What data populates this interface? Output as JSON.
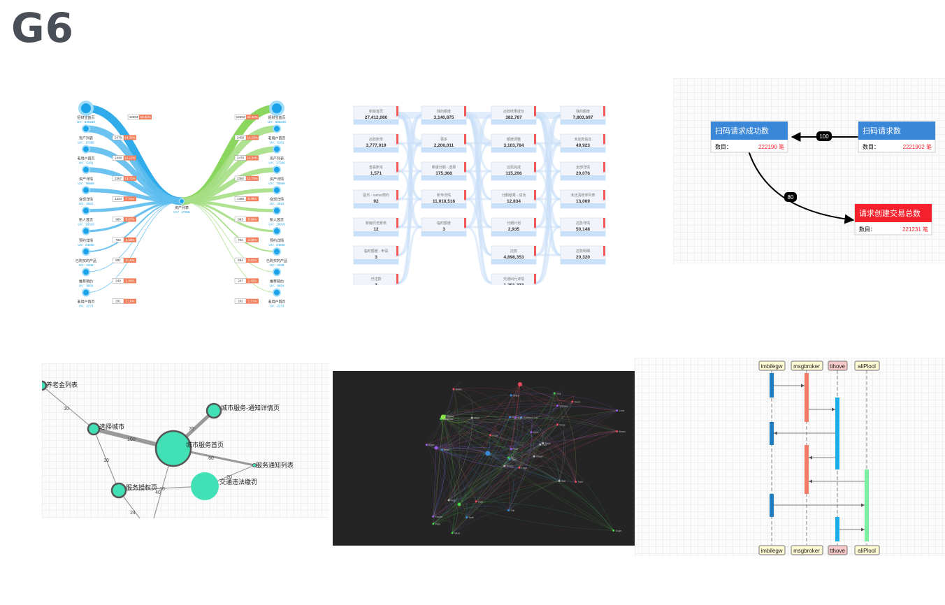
{
  "brand": {
    "logo_text": "G6"
  },
  "sankey_tree": {
    "center": {
      "label": "资产列表",
      "uv": "UV：17266"
    },
    "left_nodes": [
      {
        "label": "招财宝首页",
        "uv": "UV：836348",
        "value": "12693",
        "pct": "33.81%"
      },
      {
        "label": "资产列表",
        "uv": "UV：17266",
        "value": "2478",
        "pct": "14.35%"
      },
      {
        "label": "老用户首页",
        "uv": "UV：5181",
        "value": "2438",
        "pct": "14.12%"
      },
      {
        "label": "资产详情",
        "uv": "UV：76669",
        "value": "2367",
        "pct": "13.71%"
      },
      {
        "label": "变现详情",
        "uv": "UV：2922",
        "value": "1334",
        "pct": "7.72%"
      },
      {
        "label": "新人首页",
        "uv": "UV：16019",
        "value": "980",
        "pct": "5.67%"
      },
      {
        "label": "预约详情",
        "uv": "UV：64600",
        "value": "722",
        "pct": "4.18%"
      },
      {
        "label": "已购买的产品",
        "uv": "UV：4338",
        "value": "551",
        "pct": "3.19%"
      },
      {
        "label": "推荐预约",
        "uv": "UV：9654",
        "value": "249",
        "pct": "1.44%"
      },
      {
        "label": "老用户首页",
        "uv": "UV：2273",
        "value": "201",
        "pct": "1.16%"
      }
    ],
    "right_nodes": [
      {
        "label": "招财宝首页",
        "uv": "UV：836348",
        "value": "12263",
        "pct": "32.91%"
      },
      {
        "label": "老用户首页",
        "uv": "UV：5181",
        "value": "2458",
        "pct": "14.23%"
      },
      {
        "label": "资产列表",
        "uv": "UV：17266",
        "value": "2476",
        "pct": "14.34%"
      },
      {
        "label": "资产详情",
        "uv": "UV：76669",
        "value": "2360",
        "pct": "13.70%"
      },
      {
        "label": "变现详情",
        "uv": "UV：2922",
        "value": "1488",
        "pct": "8.48%"
      },
      {
        "label": "新人首页",
        "uv": "UV：16019",
        "value": "993",
        "pct": "5.69%"
      },
      {
        "label": "预约详情",
        "uv": "UV：64600",
        "value": "704",
        "pct": "4.08%"
      },
      {
        "label": "已购买的产品",
        "uv": "UV：4338",
        "value": "554",
        "pct": "3.21%"
      },
      {
        "label": "推荐预约",
        "uv": "UV：9654",
        "value": "247",
        "pct": "1.43%"
      },
      {
        "label": "老用户首页",
        "uv": "UV：2273",
        "value": "202",
        "pct": "1.17%"
      }
    ]
  },
  "funnel": {
    "columns": [
      [
        {
          "label": "新版首页",
          "value": "27,412,080"
        },
        {
          "label": "还款账单",
          "value": "3,777,019"
        },
        {
          "label": "查看账本",
          "value": "1,571"
        },
        {
          "label": "首页 - native预约",
          "value": "92"
        },
        {
          "label": "新版历史账单",
          "value": "12"
        },
        {
          "label": "临时额度 - 申请",
          "value": "3"
        },
        {
          "label": "已还款",
          "value": "3"
        }
      ],
      [
        {
          "label": "我的额度",
          "value": "3,140,875"
        },
        {
          "label": "更多",
          "value": "2,206,011"
        },
        {
          "label": "新版分期 - 选择",
          "value": "175,368"
        },
        {
          "label": "账单详情",
          "value": "11,018,516"
        },
        {
          "label": "临时额度",
          "value": "3"
        }
      ],
      [
        {
          "label": "还款结果成功",
          "value": "382,787"
        },
        {
          "label": "额度调整",
          "value": "3,103,784"
        },
        {
          "label": "还款完成",
          "value": "115,206"
        },
        {
          "label": "分期结果 - 成功",
          "value": "12,834"
        },
        {
          "label": "分期计划",
          "value": "2,935"
        },
        {
          "label": "还款",
          "value": "4,898,353"
        },
        {
          "label": "交通出行详情",
          "value": "1,201,233"
        }
      ],
      [
        {
          "label": "我的额度",
          "value": "7,803,697"
        },
        {
          "label": "未还款信息",
          "value": "49,923"
        },
        {
          "label": "全部详情",
          "value": "20,076"
        },
        {
          "label": "未还清账单列表",
          "value": "13,069"
        },
        {
          "label": "还款详情",
          "value": "50,148"
        },
        {
          "label": "还款明细",
          "value": "20,320"
        }
      ]
    ]
  },
  "flowchart": {
    "node_a": {
      "title": "扫码请求成功数",
      "count_label": "数目：",
      "count": "222190 笔"
    },
    "node_b": {
      "title": "扫码请求数",
      "count_label": "数目：",
      "count": "2221902 笔"
    },
    "node_c": {
      "title": "请求创建交易总数",
      "count_label": "数目：",
      "count": "221231 笔"
    },
    "edge_ba": "100",
    "edge_ac": "80",
    "colors": {
      "blue": "#3a87d8",
      "red": "#f5222d",
      "amount": "#f5222d"
    }
  },
  "force_graph": {
    "nodes": [
      {
        "label": "养老金列表"
      },
      {
        "label": "选择城市"
      },
      {
        "label": "城市服务首页"
      },
      {
        "label": "城市服务-通知详情页"
      },
      {
        "label": "服务通知列表"
      },
      {
        "label": "服务授权页"
      },
      {
        "label": "交通违法缴罚"
      }
    ],
    "edges": [
      "10",
      "100",
      "70",
      "60",
      "18",
      "20",
      "10",
      "40",
      "24"
    ],
    "colors": {
      "node": "#42e0b5",
      "stroke": "#555555",
      "edge": "#999999"
    }
  },
  "dark_network": {
    "labels": [
      "Hope",
      "Jonathan",
      "Tom",
      "Fourth",
      "Tour",
      "Hall",
      "Guy",
      "Common Cat",
      "Terrace",
      "Ghost",
      "Stalin",
      "Doge",
      "Brick",
      "Lane",
      "Grace",
      "Rose",
      "Wind",
      "Lux",
      "Door",
      "Flag",
      "Pack",
      "Park",
      "Note",
      "Sign",
      "Rock",
      "Tone",
      "Spear",
      "Sheet",
      "River",
      "Bell",
      "Beam",
      "Ode",
      "Fist",
      "Rust",
      "Mark",
      "Dune"
    ]
  },
  "sequence": {
    "actors": [
      {
        "name": "imbilegw",
        "color": "#1f7cbd"
      },
      {
        "name": "msgbroker",
        "color": "#f07b69"
      },
      {
        "name": "tthove",
        "color": "#1aaee9"
      },
      {
        "name": "aliPlool",
        "color": "#7df0a0"
      }
    ]
  }
}
